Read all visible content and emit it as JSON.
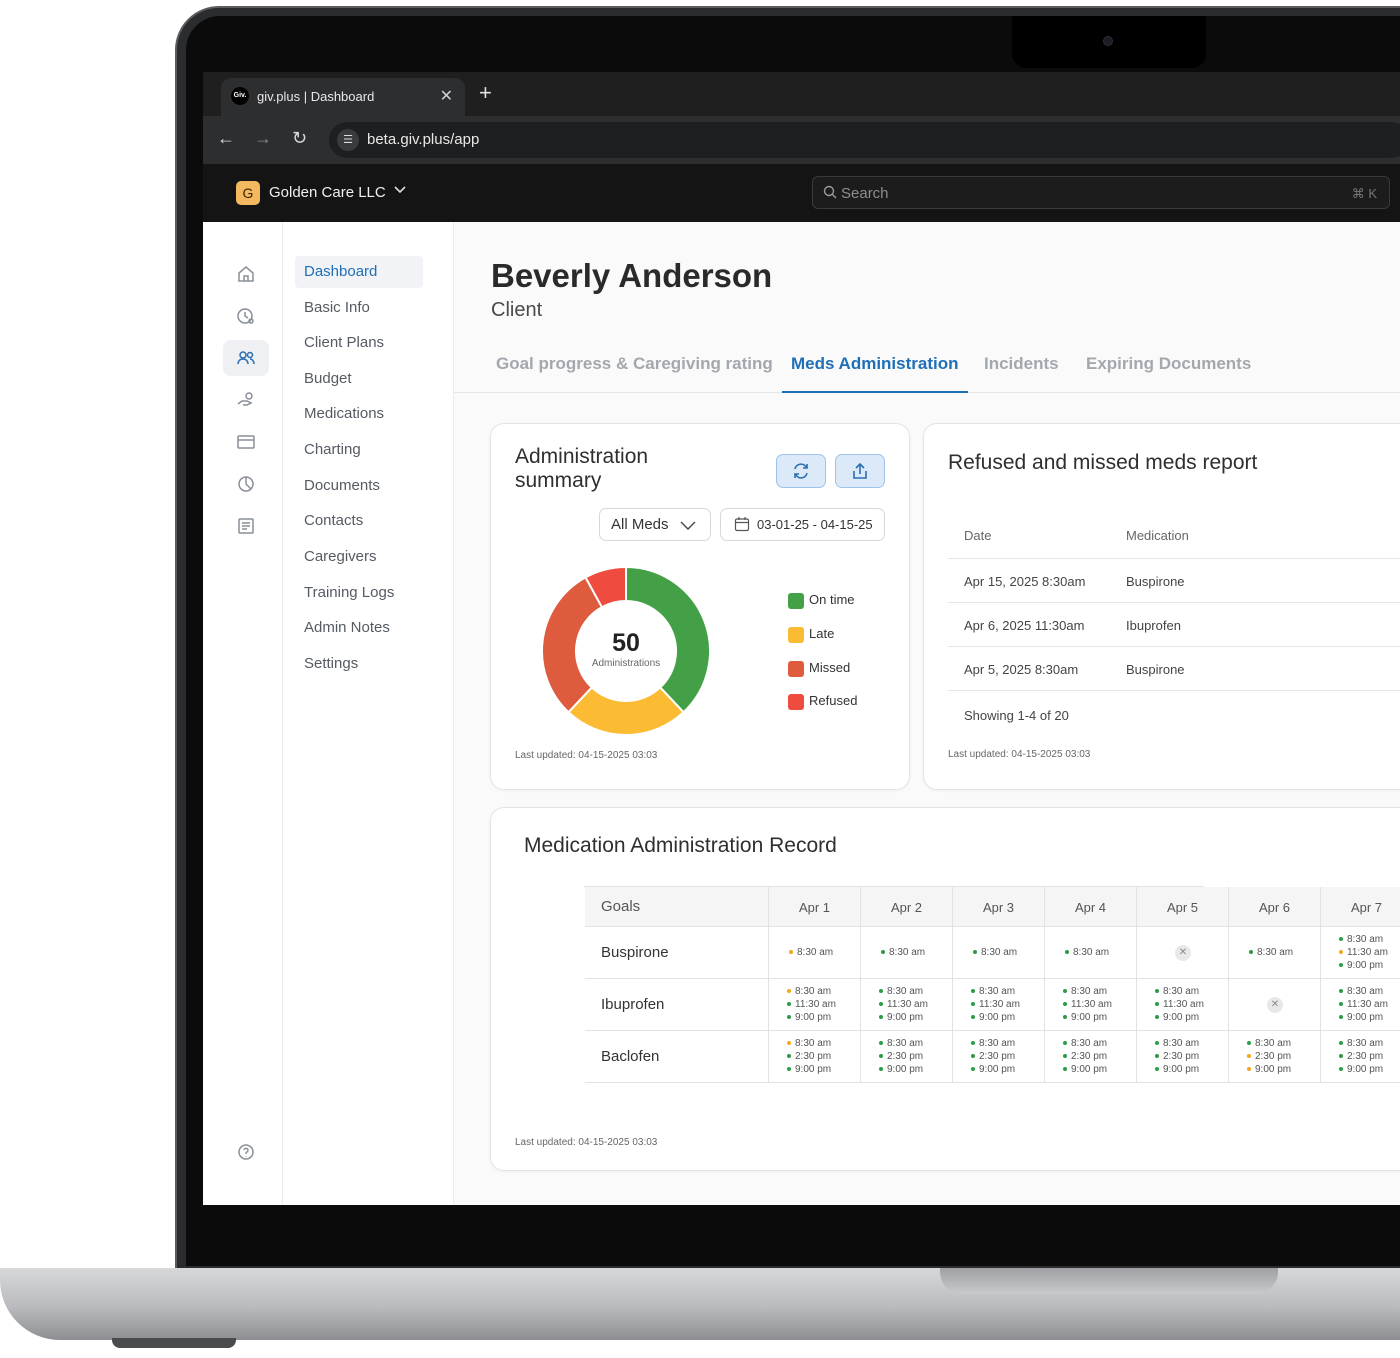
{
  "browser": {
    "tab_title": "giv.plus | Dashboard",
    "favicon_text": "Giv.",
    "url": "beta.giv.plus/app"
  },
  "header": {
    "org_initial": "G",
    "org_name": "Golden Care LLC",
    "search_placeholder": "Search",
    "search_shortcut": "⌘ K"
  },
  "subnav": [
    "Dashboard",
    "Basic Info",
    "Client Plans",
    "Budget",
    "Medications",
    "Charting",
    "Documents",
    "Contacts",
    "Caregivers",
    "Training Logs",
    "Admin Notes",
    "Settings"
  ],
  "page": {
    "name": "Beverly Anderson",
    "role": "Client"
  },
  "tabs": [
    "Goal progress & Caregiving rating",
    "Meds Administration",
    "Incidents",
    "Expiring Documents"
  ],
  "summary": {
    "title": "Administration summary",
    "filter": "All Meds",
    "date_range": "03-01-25 - 04-15-25",
    "total": "50",
    "total_label": "Administrations",
    "updated": "Last updated:  04-15-2025 03:03"
  },
  "chart_data": {
    "type": "pie",
    "donut": true,
    "categories": [
      "On time",
      "Late",
      "Missed",
      "Refused"
    ],
    "values": [
      19,
      12,
      15,
      4
    ],
    "colors": [
      "#43a047",
      "#fbbc34",
      "#de5b3e",
      "#ee4c3f"
    ]
  },
  "report": {
    "title": "Refused and missed meds report",
    "headers": [
      "Date",
      "Medication"
    ],
    "rows": [
      [
        "Apr 15, 2025 8:30am",
        "Buspirone"
      ],
      [
        "Apr 6, 2025 11:30am",
        "Ibuprofen"
      ],
      [
        "Apr 5, 2025 8:30am",
        "Buspirone"
      ]
    ],
    "showing": "Showing 1-4 of 20",
    "updated": "Last updated: 04-15-2025 03:03"
  },
  "mar": {
    "title": "Medication Administration Record",
    "goals_header": "Goals",
    "days": [
      "Apr 1",
      "Apr 2",
      "Apr 3",
      "Apr 4",
      "Apr 5",
      "Apr 6",
      "Apr 7"
    ],
    "rows": [
      {
        "med": "Buspirone",
        "cells": [
          [
            [
              "8:30 am",
              "late"
            ]
          ],
          [
            [
              "8:30 am",
              "ok"
            ]
          ],
          [
            [
              "8:30 am",
              "ok"
            ]
          ],
          [
            [
              "8:30 am",
              "ok"
            ]
          ],
          "x",
          [
            [
              "8:30 am",
              "ok"
            ]
          ],
          [
            [
              "8:30 am",
              "ok"
            ],
            [
              "11:30 am",
              "late"
            ],
            [
              "9:00 pm",
              "ok"
            ]
          ]
        ]
      },
      {
        "med": "Ibuprofen",
        "cells": [
          [
            [
              "8:30 am",
              "late"
            ],
            [
              "11:30 am",
              "ok"
            ],
            [
              "9:00 pm",
              "ok"
            ]
          ],
          [
            [
              "8:30 am",
              "ok"
            ],
            [
              "11:30 am",
              "ok"
            ],
            [
              "9:00 pm",
              "ok"
            ]
          ],
          [
            [
              "8:30 am",
              "ok"
            ],
            [
              "11:30 am",
              "ok"
            ],
            [
              "9:00 pm",
              "ok"
            ]
          ],
          [
            [
              "8:30 am",
              "ok"
            ],
            [
              "11:30 am",
              "ok"
            ],
            [
              "9:00 pm",
              "ok"
            ]
          ],
          [
            [
              "8:30 am",
              "ok"
            ],
            [
              "11:30 am",
              "ok"
            ],
            [
              "9:00 pm",
              "ok"
            ]
          ],
          "x",
          [
            [
              "8:30 am",
              "ok"
            ],
            [
              "11:30 am",
              "ok"
            ],
            [
              "9:00 pm",
              "ok"
            ]
          ]
        ]
      },
      {
        "med": "Baclofen",
        "cells": [
          [
            [
              "8:30 am",
              "late"
            ],
            [
              "2:30 pm",
              "ok"
            ],
            [
              "9:00 pm",
              "ok"
            ]
          ],
          [
            [
              "8:30 am",
              "ok"
            ],
            [
              "2:30 pm",
              "ok"
            ],
            [
              "9:00 pm",
              "ok"
            ]
          ],
          [
            [
              "8:30 am",
              "ok"
            ],
            [
              "2:30 pm",
              "ok"
            ],
            [
              "9:00 pm",
              "ok"
            ]
          ],
          [
            [
              "8:30 am",
              "ok"
            ],
            [
              "2:30 pm",
              "ok"
            ],
            [
              "9:00 pm",
              "ok"
            ]
          ],
          [
            [
              "8:30 am",
              "ok"
            ],
            [
              "2:30 pm",
              "ok"
            ],
            [
              "9:00 pm",
              "ok"
            ]
          ],
          [
            [
              "8:30 am",
              "ok"
            ],
            [
              "2:30 pm",
              "late"
            ],
            [
              "9:00 pm",
              "late"
            ]
          ],
          [
            [
              "8:30 am",
              "ok"
            ],
            [
              "2:30 pm",
              "ok"
            ],
            [
              "9:00 pm",
              "ok"
            ]
          ]
        ]
      }
    ],
    "status_colors": {
      "ok": "#2e9b48",
      "late": "#f2a81d"
    },
    "updated": "Last updated: 04-15-2025 03:03"
  },
  "rail_icons": [
    "home-icon",
    "clock-person-icon",
    "users-icon",
    "hand-care-icon",
    "card-icon",
    "pie-chart-icon",
    "notes-icon",
    "help-icon"
  ]
}
